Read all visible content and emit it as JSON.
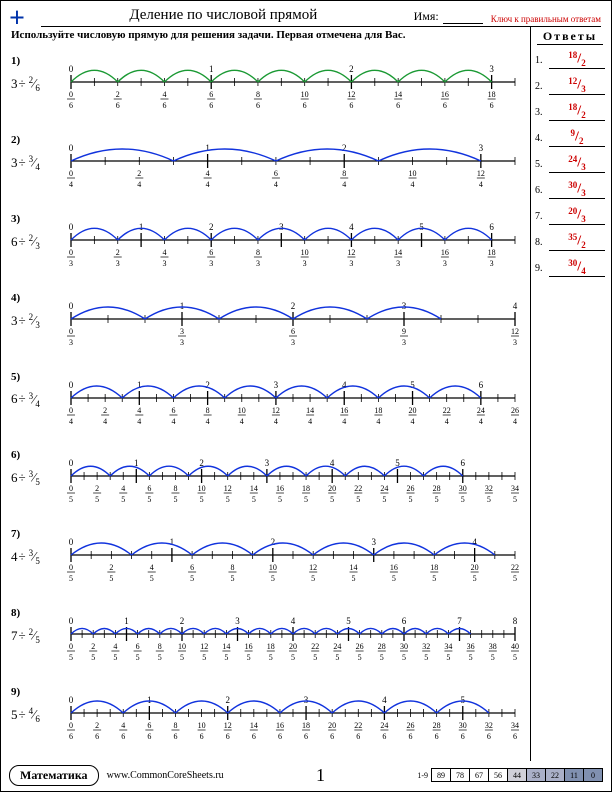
{
  "header": {
    "title": "Деление по числовой прямой",
    "name_label": "Имя:",
    "answerkey": "Ключ к правильным ответам"
  },
  "instruction": "Используйте числовую прямую для решения задачи. Первая отмечена для Вас.",
  "answers_title": "Ответы",
  "answers": [
    {
      "n": "18",
      "d": "2"
    },
    {
      "n": "12",
      "d": "3"
    },
    {
      "n": "18",
      "d": "2"
    },
    {
      "n": "9",
      "d": "2"
    },
    {
      "n": "24",
      "d": "3"
    },
    {
      "n": "30",
      "d": "3"
    },
    {
      "n": "20",
      "d": "3"
    },
    {
      "n": "35",
      "d": "2"
    },
    {
      "n": "30",
      "d": "4"
    }
  ],
  "problems": [
    {
      "num": "1",
      "whole": "3",
      "fn": "2",
      "fd": "6",
      "denom": 6,
      "limit": 3,
      "extraTicks": 1,
      "labelEveryTick": 2,
      "first_color": "#1a9933",
      "color": "#1a9933"
    },
    {
      "num": "2",
      "whole": "3",
      "fn": "3",
      "fd": "4",
      "denom": 4,
      "limit": 3,
      "extraTicks": 1,
      "labelEveryTick": 2,
      "first_color": "#1133dd",
      "color": "#1133dd"
    },
    {
      "num": "3",
      "whole": "6",
      "fn": "2",
      "fd": "3",
      "denom": 3,
      "limit": 6,
      "extraTicks": 1,
      "labelEveryTick": 2,
      "first_color": "#1133dd",
      "color": "#1133dd"
    },
    {
      "num": "4",
      "whole": "3",
      "fn": "2",
      "fd": "3",
      "denom": 3,
      "limit": 4,
      "extraTicks": 0,
      "labelEveryTick": 3,
      "hopsUpTo": 3,
      "first_color": "#1133dd",
      "color": "#1133dd"
    },
    {
      "num": "5",
      "whole": "6",
      "fn": "3",
      "fd": "4",
      "denom": 4,
      "limit": 6,
      "extraTicks": 2,
      "labelEveryTick": 2,
      "first_color": "#1133dd",
      "color": "#1133dd"
    },
    {
      "num": "6",
      "whole": "6",
      "fn": "3",
      "fd": "5",
      "denom": 5,
      "limit": 6,
      "extraTicks": 4,
      "labelEveryTick": 2,
      "first_color": "#1133dd",
      "color": "#1133dd"
    },
    {
      "num": "7",
      "whole": "4",
      "fn": "3",
      "fd": "5",
      "denom": 5,
      "limit": 4,
      "extraTicks": 2,
      "labelEveryTick": 2,
      "first_color": "#1133dd",
      "color": "#1133dd"
    },
    {
      "num": "8",
      "whole": "7",
      "fn": "2",
      "fd": "5",
      "denom": 5,
      "limit": 8,
      "extraTicks": 0,
      "hopsUpTo": 7,
      "labelEveryTick": 2,
      "first_color": "#1133dd",
      "color": "#1133dd"
    },
    {
      "num": "9",
      "whole": "5",
      "fn": "4",
      "fd": "6",
      "denom": 6,
      "limit": 5,
      "extraTicks": 4,
      "labelEveryTick": 2,
      "first_color": "#1133dd",
      "color": "#1133dd"
    }
  ],
  "footer": {
    "subject": "Математика",
    "url": "www.CommonCoreSheets.ru",
    "page": "1",
    "range": "1-9",
    "scores": [
      {
        "v": "89",
        "s": 0
      },
      {
        "v": "78",
        "s": 0
      },
      {
        "v": "67",
        "s": 0
      },
      {
        "v": "56",
        "s": 0
      },
      {
        "v": "44",
        "s": 1
      },
      {
        "v": "33",
        "s": 2
      },
      {
        "v": "22",
        "s": 2
      },
      {
        "v": "11",
        "s": 3
      },
      {
        "v": "0",
        "s": 3
      }
    ]
  },
  "style": {
    "tick_color": "#000",
    "baseline_width": 1.2,
    "hop_width": 1.4,
    "line_margin": 8
  }
}
